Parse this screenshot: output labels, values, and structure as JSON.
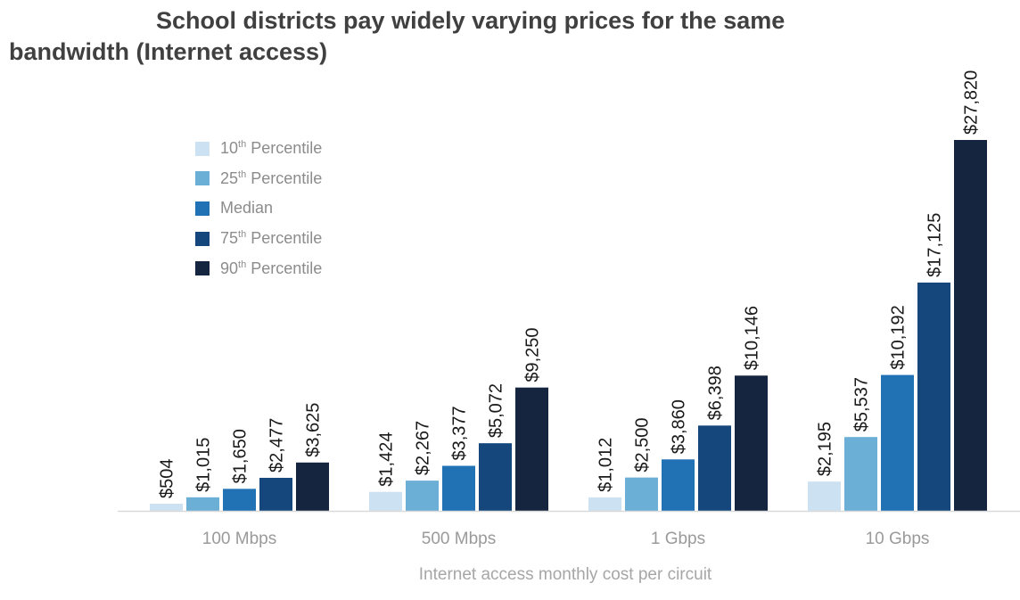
{
  "chart_data": {
    "type": "bar",
    "title": "School districts pay widely varying prices for the same bandwidth (Internet access)",
    "title_lines": [
      "School districts pay widely varying prices for the same",
      "bandwidth (Internet access)"
    ],
    "xlabel": "Internet access monthly cost per circuit",
    "ylabel": "",
    "categories": [
      "100 Mbps",
      "500 Mbps",
      "1 Gbps",
      "10 Gbps"
    ],
    "ylim": [
      0,
      27820
    ],
    "grid": false,
    "legend_position": "top-left",
    "series": [
      {
        "name": "10th Percentile",
        "ord": "10",
        "sup": "th",
        "rest": " Percentile",
        "color": "#cce2f2",
        "values": [
          504,
          1424,
          1012,
          2195
        ],
        "labels": [
          "$504",
          "$1,424",
          "$1,012",
          "$2,195"
        ]
      },
      {
        "name": "25th Percentile",
        "ord": "25",
        "sup": "th",
        "rest": " Percentile",
        "color": "#6baed6",
        "values": [
          1015,
          2267,
          2500,
          5537
        ],
        "labels": [
          "$1,015",
          "$2,267",
          "$2,500",
          "$5,537"
        ]
      },
      {
        "name": "Median",
        "ord": "Median",
        "sup": "",
        "rest": "",
        "color": "#2171b5",
        "values": [
          1650,
          3377,
          3860,
          10192
        ],
        "labels": [
          "$1,650",
          "$3,377",
          "$3,860",
          "$10,192"
        ]
      },
      {
        "name": "75th Percentile",
        "ord": "75",
        "sup": "th",
        "rest": " Percentile",
        "color": "#16477c",
        "values": [
          2477,
          5072,
          6398,
          17125
        ],
        "labels": [
          "$2,477",
          "$5,072",
          "$6,398",
          "$17,125"
        ]
      },
      {
        "name": "90th Percentile",
        "ord": "90",
        "sup": "th",
        "rest": " Percentile",
        "color": "#15253f",
        "values": [
          3625,
          9250,
          10146,
          27820
        ],
        "labels": [
          "$3,625",
          "$9,250",
          "$10,146",
          "$27,820"
        ]
      }
    ],
    "axis_color": "#d9d9d9"
  }
}
